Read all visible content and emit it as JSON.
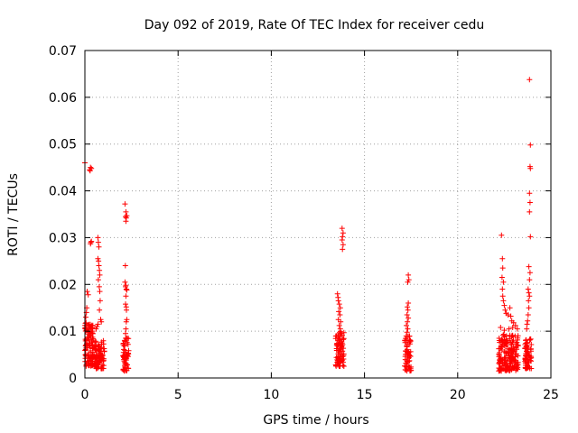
{
  "chart_data": {
    "type": "scatter",
    "title": "Day 092 of 2019, Rate Of TEC Index for receiver cedu",
    "xlabel": "GPS time / hours",
    "ylabel": "ROTI / TECUs",
    "xlim": [
      0,
      25
    ],
    "ylim": [
      0,
      0.07
    ],
    "x_ticks": [
      0,
      5,
      10,
      15,
      20,
      25
    ],
    "x_tick_labels": [
      "0",
      "5",
      "10",
      "15",
      "20",
      "25"
    ],
    "y_ticks": [
      0,
      0.01,
      0.02,
      0.03,
      0.04,
      0.05,
      0.06,
      0.07
    ],
    "y_tick_labels": [
      "0",
      "0.01",
      "0.02",
      "0.03",
      "0.04",
      "0.05",
      "0.06",
      "0.07"
    ],
    "grid": true,
    "marker": "+",
    "color": "#ff0000",
    "clusters": [
      {
        "x_range": [
          0.0,
          0.45
        ],
        "y_range": [
          0.0025,
          0.012
        ],
        "count": 110
      },
      {
        "x_range": [
          0.5,
          1.05
        ],
        "y_range": [
          0.002,
          0.008
        ],
        "count": 90
      },
      {
        "x_range": [
          2.05,
          2.35
        ],
        "y_range": [
          0.0015,
          0.0085
        ],
        "count": 60
      },
      {
        "x_range": [
          13.45,
          13.9
        ],
        "y_range": [
          0.0025,
          0.01
        ],
        "count": 80
      },
      {
        "x_range": [
          17.15,
          17.5
        ],
        "y_range": [
          0.0015,
          0.009
        ],
        "count": 60
      },
      {
        "x_range": [
          22.2,
          23.25
        ],
        "y_range": [
          0.0015,
          0.0095
        ],
        "count": 170
      },
      {
        "x_range": [
          23.6,
          23.95
        ],
        "y_range": [
          0.002,
          0.0085
        ],
        "count": 70
      }
    ],
    "points": [
      [
        0.0,
        0.046
      ],
      [
        0.25,
        0.0445
      ],
      [
        0.3,
        0.045
      ],
      [
        0.35,
        0.0448
      ],
      [
        0.28,
        0.0443
      ],
      [
        0.12,
        0.0185
      ],
      [
        0.1,
        0.015
      ],
      [
        0.08,
        0.014
      ],
      [
        0.05,
        0.013
      ],
      [
        0.18,
        0.0178
      ],
      [
        0.3,
        0.0287
      ],
      [
        0.35,
        0.0292
      ],
      [
        0.32,
        0.029
      ],
      [
        0.7,
        0.03
      ],
      [
        0.72,
        0.029
      ],
      [
        0.75,
        0.028
      ],
      [
        0.7,
        0.0255
      ],
      [
        0.73,
        0.025
      ],
      [
        0.75,
        0.024
      ],
      [
        0.78,
        0.023
      ],
      [
        0.8,
        0.022
      ],
      [
        0.72,
        0.021
      ],
      [
        0.77,
        0.0195
      ],
      [
        0.8,
        0.0185
      ],
      [
        0.82,
        0.0165
      ],
      [
        0.78,
        0.0145
      ],
      [
        0.85,
        0.0125
      ],
      [
        0.88,
        0.012
      ],
      [
        0.7,
        0.0115
      ],
      [
        0.65,
        0.011
      ],
      [
        0.6,
        0.0105
      ],
      [
        2.15,
        0.0372
      ],
      [
        2.2,
        0.0355
      ],
      [
        2.18,
        0.0345
      ],
      [
        2.22,
        0.0342
      ],
      [
        2.25,
        0.0347
      ],
      [
        2.2,
        0.0335
      ],
      [
        2.17,
        0.024
      ],
      [
        2.15,
        0.0205
      ],
      [
        2.2,
        0.0198
      ],
      [
        2.18,
        0.0195
      ],
      [
        2.22,
        0.019
      ],
      [
        2.25,
        0.0188
      ],
      [
        2.2,
        0.0175
      ],
      [
        2.18,
        0.0158
      ],
      [
        2.22,
        0.0152
      ],
      [
        2.23,
        0.0145
      ],
      [
        2.25,
        0.0125
      ],
      [
        2.22,
        0.012
      ],
      [
        2.2,
        0.0105
      ],
      [
        2.18,
        0.0095
      ],
      [
        13.8,
        0.032
      ],
      [
        13.85,
        0.031
      ],
      [
        13.82,
        0.0302
      ],
      [
        13.8,
        0.0295
      ],
      [
        13.85,
        0.0285
      ],
      [
        13.82,
        0.0275
      ],
      [
        13.55,
        0.018
      ],
      [
        13.58,
        0.0172
      ],
      [
        13.6,
        0.0165
      ],
      [
        13.65,
        0.0158
      ],
      [
        13.7,
        0.015
      ],
      [
        13.62,
        0.0142
      ],
      [
        13.68,
        0.0135
      ],
      [
        13.6,
        0.0125
      ],
      [
        13.72,
        0.012
      ],
      [
        13.65,
        0.0112
      ],
      [
        13.7,
        0.0105
      ],
      [
        17.35,
        0.022
      ],
      [
        17.38,
        0.021
      ],
      [
        17.32,
        0.0205
      ],
      [
        17.35,
        0.016
      ],
      [
        17.3,
        0.0152
      ],
      [
        17.33,
        0.0145
      ],
      [
        17.28,
        0.0135
      ],
      [
        17.35,
        0.0128
      ],
      [
        17.3,
        0.012
      ],
      [
        17.25,
        0.0112
      ],
      [
        17.32,
        0.0105
      ],
      [
        17.28,
        0.0098
      ],
      [
        22.35,
        0.0305
      ],
      [
        22.4,
        0.0255
      ],
      [
        22.42,
        0.0235
      ],
      [
        22.38,
        0.0215
      ],
      [
        22.45,
        0.0205
      ],
      [
        22.4,
        0.019
      ],
      [
        22.42,
        0.0175
      ],
      [
        22.45,
        0.0165
      ],
      [
        22.5,
        0.0155
      ],
      [
        22.55,
        0.0145
      ],
      [
        22.6,
        0.0138
      ],
      [
        22.7,
        0.0135
      ],
      [
        22.8,
        0.015
      ],
      [
        22.85,
        0.0132
      ],
      [
        22.9,
        0.0122
      ],
      [
        23.0,
        0.0118
      ],
      [
        23.1,
        0.0112
      ],
      [
        22.95,
        0.0108
      ],
      [
        22.75,
        0.0105
      ],
      [
        22.5,
        0.0102
      ],
      [
        22.3,
        0.0108
      ],
      [
        23.2,
        0.0105
      ],
      [
        23.85,
        0.0638
      ],
      [
        23.9,
        0.0498
      ],
      [
        23.88,
        0.0452
      ],
      [
        23.9,
        0.0448
      ],
      [
        23.85,
        0.0395
      ],
      [
        23.88,
        0.0375
      ],
      [
        23.85,
        0.0355
      ],
      [
        23.9,
        0.0302
      ],
      [
        23.82,
        0.0238
      ],
      [
        23.88,
        0.0225
      ],
      [
        23.85,
        0.021
      ],
      [
        23.78,
        0.019
      ],
      [
        23.82,
        0.0182
      ],
      [
        23.85,
        0.0175
      ],
      [
        23.8,
        0.0165
      ],
      [
        23.82,
        0.015
      ],
      [
        23.78,
        0.0135
      ],
      [
        23.75,
        0.0122
      ],
      [
        23.72,
        0.0115
      ],
      [
        23.7,
        0.0105
      ]
    ]
  }
}
